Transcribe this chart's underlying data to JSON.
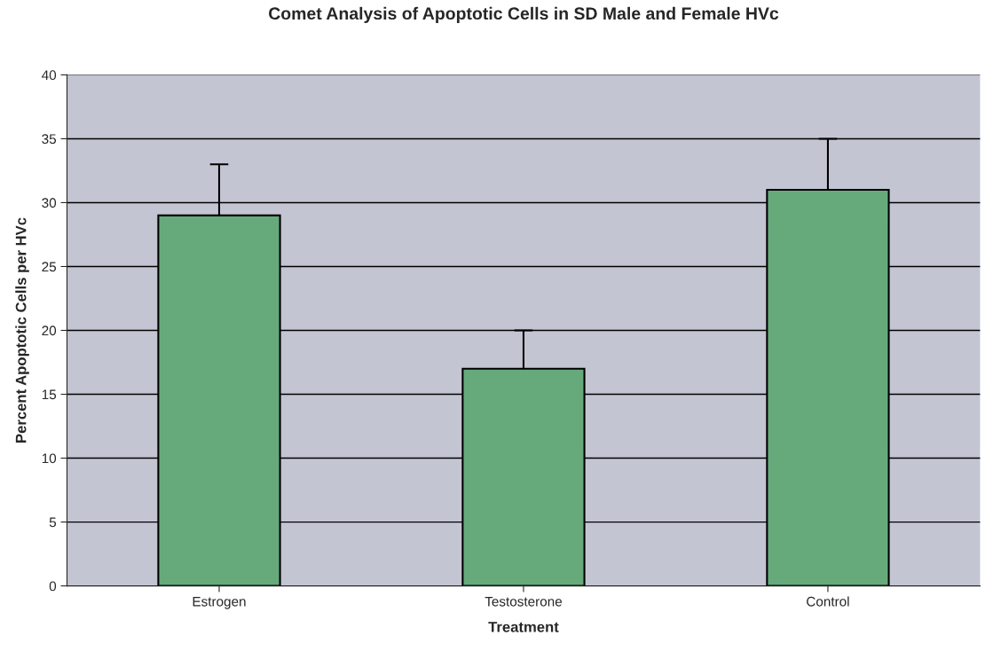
{
  "chart_data": {
    "type": "bar",
    "title": "Comet Analysis of Apoptotic Cells in SD Male and Female HVc",
    "xlabel": "Treatment",
    "ylabel": "Percent Apoptotic Cells per HVc",
    "categories": [
      "Estrogen",
      "Testosterone",
      "Control"
    ],
    "values": [
      29,
      17,
      31
    ],
    "color": "#66aa7c",
    "errors": [
      [
        29,
        33
      ],
      [
        17,
        20
      ],
      [
        31,
        35
      ]
    ],
    "ylim": [
      0,
      40
    ],
    "yticks": [
      0,
      5,
      10,
      15,
      20,
      25,
      30,
      35,
      40
    ],
    "grid": "y"
  }
}
